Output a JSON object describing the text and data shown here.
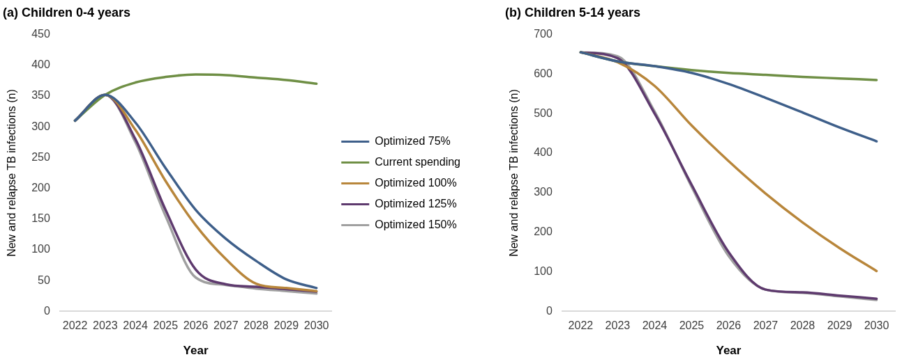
{
  "chart_data": [
    {
      "type": "line",
      "title": "(a) Children 0-4 years",
      "xlabel": "Year",
      "ylabel": "New and relapse TB infections (n)",
      "categories": [
        "2022",
        "2023",
        "2024",
        "2025",
        "2026",
        "2027",
        "2028",
        "2029",
        "2030"
      ],
      "ylim": [
        0,
        450
      ],
      "yticks": [
        0,
        50,
        100,
        150,
        200,
        250,
        300,
        350,
        400,
        450
      ],
      "grid": false,
      "legend": "right",
      "marker": "none",
      "line_style": "solid",
      "series": [
        {
          "name": "Optimized 75%",
          "color": "#3e5f8a",
          "values": [
            310,
            352,
            307,
            233,
            165,
            118,
            82,
            52,
            38
          ]
        },
        {
          "name": "Current spending",
          "color": "#6f8f45",
          "values": [
            310,
            352,
            372,
            381,
            385,
            384,
            380,
            376,
            370
          ]
        },
        {
          "name": "Optimized 100%",
          "color": "#b8863b",
          "values": [
            310,
            352,
            295,
            212,
            140,
            85,
            45,
            38,
            33
          ]
        },
        {
          "name": "Optimized 125%",
          "color": "#5e3a6e",
          "values": [
            310,
            352,
            280,
            165,
            68,
            44,
            40,
            36,
            32
          ]
        },
        {
          "name": "Optimized 150%",
          "color": "#a0a0a0",
          "values": [
            310,
            352,
            275,
            155,
            55,
            43,
            37,
            33,
            29
          ]
        }
      ]
    },
    {
      "type": "line",
      "title": "(b) Children 5-14 years",
      "xlabel": "Year",
      "ylabel": "New and relapse TB infections (n)",
      "categories": [
        "2022",
        "2023",
        "2024",
        "2025",
        "2026",
        "2027",
        "2028",
        "2029",
        "2030"
      ],
      "ylim": [
        0,
        700
      ],
      "yticks": [
        0,
        100,
        200,
        300,
        400,
        500,
        600,
        700
      ],
      "grid": false,
      "legend": false,
      "marker": "none",
      "line_style": "solid",
      "series": [
        {
          "color": "#3e5f8a",
          "values": [
            655,
            632,
            620,
            603,
            575,
            540,
            503,
            465,
            430
          ]
        },
        {
          "color": "#6f8f45",
          "values": [
            655,
            632,
            620,
            610,
            603,
            598,
            593,
            589,
            585
          ]
        },
        {
          "color": "#b8863b",
          "values": [
            655,
            630,
            570,
            470,
            380,
            298,
            225,
            160,
            102
          ]
        },
        {
          "color": "#5e3a6e",
          "values": [
            655,
            640,
            500,
            320,
            150,
            55,
            48,
            40,
            32
          ]
        },
        {
          "color": "#a0a0a0",
          "values": [
            655,
            645,
            505,
            315,
            140,
            55,
            47,
            38,
            29
          ]
        }
      ]
    }
  ]
}
